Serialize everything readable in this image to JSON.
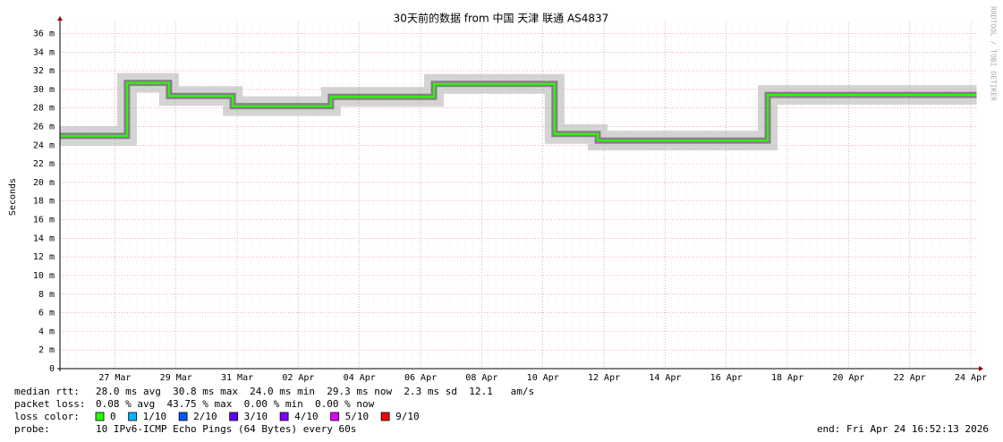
{
  "chart_data": {
    "type": "line",
    "title": "30天前的数据 from 中国 天津 联通 AS4837",
    "ylabel": "Seconds",
    "credit": "RRDTOOL / TOBI OETIKER",
    "xlim": [
      "2026-03-25T16:52",
      "2026-04-24T16:52"
    ],
    "xticks": [
      {
        "value": "2026-03-27T12:00",
        "label": "27 Mar"
      },
      {
        "value": "2026-03-29T12:00",
        "label": "29 Mar"
      },
      {
        "value": "2026-03-31T12:00",
        "label": "31 Mar"
      },
      {
        "value": "2026-04-02T12:00",
        "label": "02 Apr"
      },
      {
        "value": "2026-04-04T12:00",
        "label": "04 Apr"
      },
      {
        "value": "2026-04-06T12:00",
        "label": "06 Apr"
      },
      {
        "value": "2026-04-08T12:00",
        "label": "08 Apr"
      },
      {
        "value": "2026-04-10T12:00",
        "label": "10 Apr"
      },
      {
        "value": "2026-04-12T12:00",
        "label": "12 Apr"
      },
      {
        "value": "2026-04-14T12:00",
        "label": "14 Apr"
      },
      {
        "value": "2026-04-16T12:00",
        "label": "16 Apr"
      },
      {
        "value": "2026-04-18T12:00",
        "label": "18 Apr"
      },
      {
        "value": "2026-04-20T12:00",
        "label": "20 Apr"
      },
      {
        "value": "2026-04-22T12:00",
        "label": "22 Apr"
      },
      {
        "value": "2026-04-24T12:00",
        "label": "24 Apr"
      }
    ],
    "ylim": [
      0,
      0.0372
    ],
    "yticks": [
      0,
      {
        "value": 0.002,
        "label": "2 m"
      },
      {
        "value": 0.004,
        "label": "4 m"
      },
      {
        "value": 0.006,
        "label": "6 m"
      },
      {
        "value": 0.008,
        "label": "8 m"
      },
      {
        "value": 0.01,
        "label": "10 m"
      },
      {
        "value": 0.012,
        "label": "12 m"
      },
      {
        "value": 0.014,
        "label": "14 m"
      },
      {
        "value": 0.016,
        "label": "16 m"
      },
      {
        "value": 0.018,
        "label": "18 m"
      },
      {
        "value": 0.02,
        "label": "20 m"
      },
      {
        "value": 0.022,
        "label": "22 m"
      },
      {
        "value": 0.024,
        "label": "24 m"
      },
      {
        "value": 0.026,
        "label": "26 m"
      },
      {
        "value": 0.028,
        "label": "28 m"
      },
      {
        "value": 0.03,
        "label": "30 m"
      },
      {
        "value": 0.032,
        "label": "32 m"
      },
      {
        "value": 0.034,
        "label": "34 m"
      },
      {
        "value": 0.036,
        "label": "36 m"
      }
    ],
    "grid": true,
    "x": [
      "2026-03-25T16:52",
      "2026-03-27T21:30",
      "2026-03-27T21:30",
      "2026-03-29T06:30",
      "2026-03-29T06:30",
      "2026-03-31T08:30",
      "2026-03-31T08:30",
      "2026-04-03T13:40",
      "2026-04-03T13:40",
      "2026-04-06T22:30",
      "2026-04-06T22:30",
      "2026-04-10T21:10",
      "2026-04-10T21:10",
      "2026-04-12T07:00",
      "2026-04-12T07:00",
      "2026-04-17T20:30",
      "2026-04-17T20:30",
      "2026-04-24T16:30"
    ],
    "series": [
      {
        "name": "median rtt",
        "color": "#26ff00",
        "values": [
          0.025,
          0.025,
          0.0307,
          0.0307,
          0.0293,
          0.0293,
          0.0282,
          0.0282,
          0.0292,
          0.0292,
          0.0306,
          0.0306,
          0.0252,
          0.0252,
          0.0245,
          0.0245,
          0.0294,
          0.0294
        ]
      }
    ],
    "stats": [
      {
        "label": "median rtt:",
        "text": "28.0 ms avg  30.8 ms max  24.0 ms min  29.3 ms now  2.3 ms sd  12.1   am/s"
      },
      {
        "label": "packet loss:",
        "text": "0.08 % avg  43.75 % max  0.00 % min  0.00 % now"
      }
    ],
    "loss_label": "loss color:",
    "loss_colors": [
      {
        "label": "0",
        "color": "#26ff00"
      },
      {
        "label": "1/10",
        "color": "#00b8ff"
      },
      {
        "label": "2/10",
        "color": "#0059ff"
      },
      {
        "label": "3/10",
        "color": "#5e00ff"
      },
      {
        "label": "4/10",
        "color": "#7e00ff"
      },
      {
        "label": "5/10",
        "color": "#dd00ff"
      },
      {
        "label": "9/10",
        "color": "#ff0000"
      }
    ],
    "probe_label": "probe:",
    "probe": "10 IPv6-ICMP Echo Pings (64 Bytes) every 60s",
    "end": "end: Fri Apr 24 16:52:13 2026"
  }
}
